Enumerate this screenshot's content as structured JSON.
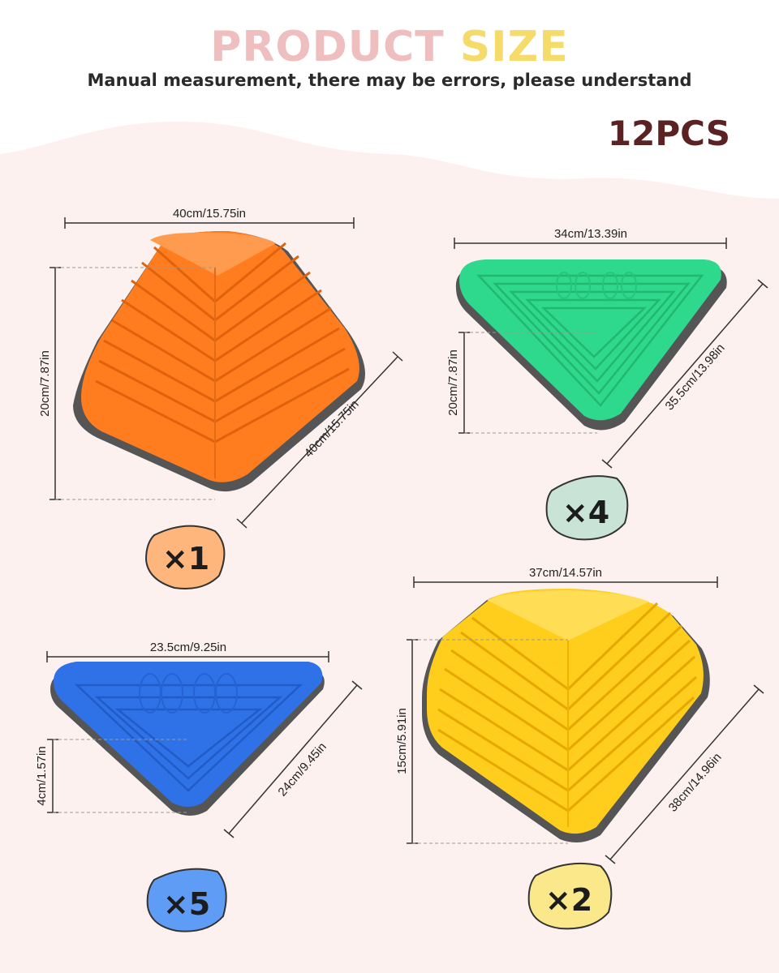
{
  "header": {
    "title_word1": "PRODUCT",
    "title_word2": "SIZE",
    "subtitle": "Manual measurement, there may be errors, please understand",
    "total_count": "12PCS"
  },
  "colors": {
    "background": "#fdf1f0",
    "orange": "#ff7d1e",
    "green": "#2ed88c",
    "blue": "#2f72e8",
    "yellow": "#ffcd1c",
    "title_pink": "#eebfbe",
    "title_yellow": "#f5dc6a",
    "pcs_brown": "#5a2222"
  },
  "products": [
    {
      "color_name": "orange",
      "width": "40cm/15.75in",
      "height": "20cm/7.87in",
      "side": "40cm/15.75in",
      "quantity": "×1"
    },
    {
      "color_name": "green",
      "width": "34cm/13.39in",
      "height": "20cm/7.87in",
      "side": "35.5cm/13.98in",
      "quantity": "×4"
    },
    {
      "color_name": "blue",
      "width": "23.5cm/9.25in",
      "height": "4cm/1.57in",
      "side": "24cm/9.45in",
      "quantity": "×5"
    },
    {
      "color_name": "yellow",
      "width": "37cm/14.57in",
      "height": "15cm/5.91in",
      "side": "38cm/14.96in",
      "quantity": "×2"
    }
  ]
}
